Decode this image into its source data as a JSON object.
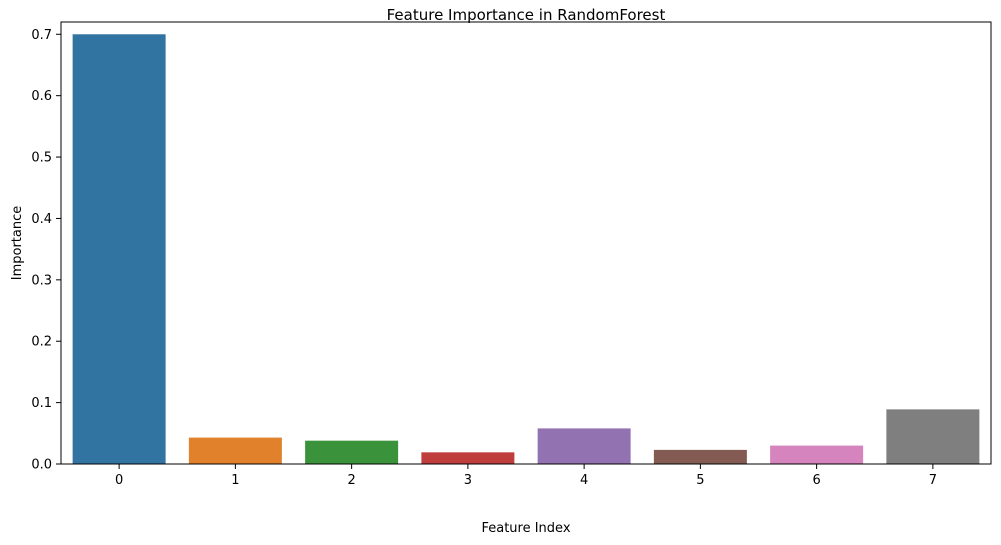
{
  "chart_data": {
    "type": "bar",
    "title": "Feature Importance in RandomForest",
    "xlabel": "Feature Index",
    "ylabel": "Importance",
    "categories": [
      "0",
      "1",
      "2",
      "3",
      "4",
      "5",
      "6",
      "7"
    ],
    "values": [
      0.7,
      0.043,
      0.038,
      0.019,
      0.058,
      0.023,
      0.03,
      0.089
    ],
    "colors": [
      "#3274a1",
      "#e1812c",
      "#3a923a",
      "#c03d3e",
      "#9372b2",
      "#845b53",
      "#d684bd",
      "#7f7f7f"
    ],
    "ylim": [
      0,
      0.72
    ],
    "yticks": [
      "0.0",
      "0.1",
      "0.2",
      "0.3",
      "0.4",
      "0.5",
      "0.6",
      "0.7"
    ],
    "grid": false,
    "legend": "none"
  }
}
